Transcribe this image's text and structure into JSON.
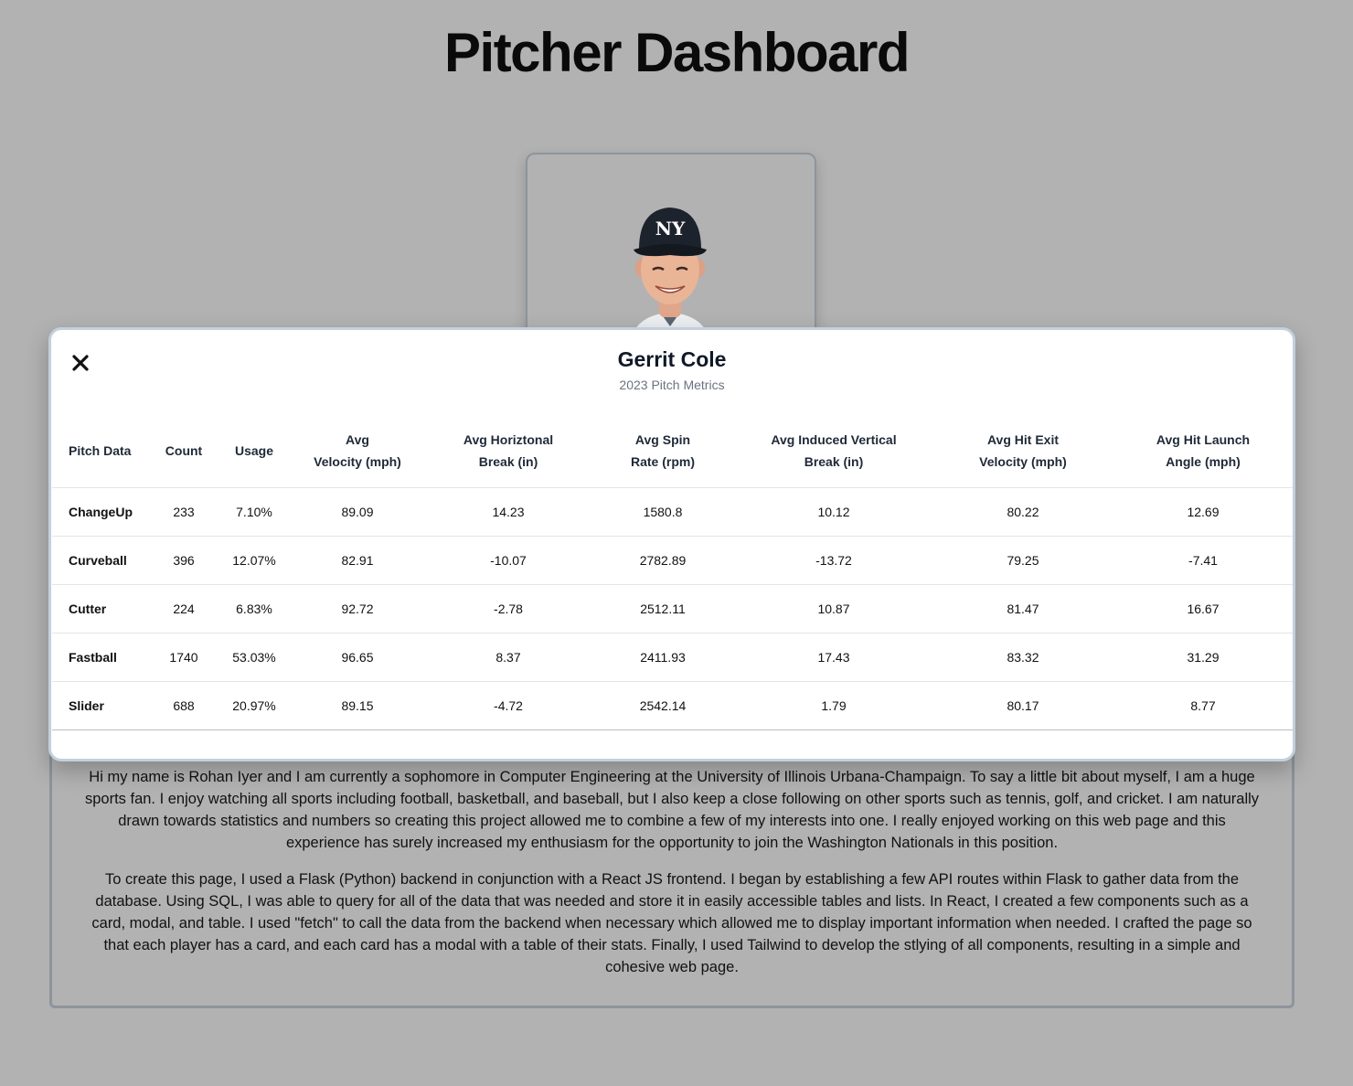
{
  "page": {
    "title": "Pitcher Dashboard"
  },
  "modal": {
    "player_name": "Gerrit Cole",
    "subtitle": "2023 Pitch Metrics",
    "close_icon": "close-icon",
    "columns": [
      [
        "Pitch Data"
      ],
      [
        "Count"
      ],
      [
        "Usage"
      ],
      [
        "Avg",
        "Velocity (mph)"
      ],
      [
        "Avg Horiztonal",
        "Break (in)"
      ],
      [
        "Avg Spin",
        "Rate (rpm)"
      ],
      [
        "Avg Induced Vertical",
        "Break (in)"
      ],
      [
        "Avg Hit Exit",
        "Velocity (mph)"
      ],
      [
        "Avg Hit Launch",
        "Angle (mph)"
      ]
    ],
    "rows": [
      [
        "ChangeUp",
        "233",
        "7.10%",
        "89.09",
        "14.23",
        "1580.8",
        "10.12",
        "80.22",
        "12.69"
      ],
      [
        "Curveball",
        "396",
        "12.07%",
        "82.91",
        "-10.07",
        "2782.89",
        "-13.72",
        "79.25",
        "-7.41"
      ],
      [
        "Cutter",
        "224",
        "6.83%",
        "92.72",
        "-2.78",
        "2512.11",
        "10.87",
        "81.47",
        "16.67"
      ],
      [
        "Fastball",
        "1740",
        "53.03%",
        "96.65",
        "8.37",
        "2411.93",
        "17.43",
        "83.32",
        "31.29"
      ],
      [
        "Slider",
        "688",
        "20.97%",
        "89.15",
        "-4.72",
        "2542.14",
        "1.79",
        "80.17",
        "8.77"
      ]
    ]
  },
  "about": {
    "paragraph1": "Hi my name is Rohan Iyer and I am currently a sophomore in Computer Engineering at the University of Illinois Urbana-Champaign. To say a little bit about myself, I am a huge sports fan. I enjoy watching all sports including football, basketball, and baseball, but I also keep a close following on other sports such as tennis, golf, and cricket. I am naturally drawn towards statistics and numbers so creating this project allowed me to combine a few of my interests into one. I really enjoyed working on this web page and this experience has surely increased my enthusiasm for the opportunity to join the Washington Nationals in this position.",
    "paragraph2": "To create this page, I used a Flask (Python) backend in conjunction with a React JS frontend. I began by establishing a few API routes within Flask to gather data from the database. Using SQL, I was able to query for all of the data that was needed and store it in easily accessible tables and lists. In React, I created a few components such as a card, modal, and table. I used \"fetch\" to call the data from the backend when necessary which allowed me to display important information when needed. I crafted the page so that each player has a card, and each card has a modal with a table of their stats. Finally, I used Tailwind to develop the stlying of all components, resulting in a simple and cohesive web page."
  }
}
